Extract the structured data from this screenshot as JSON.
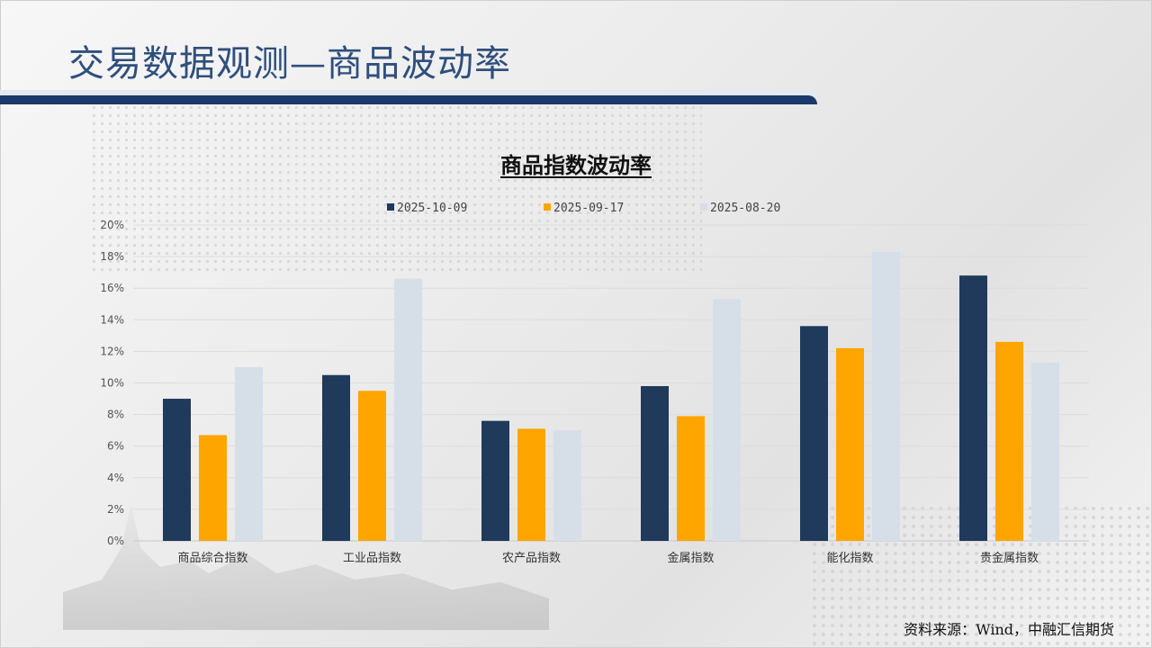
{
  "slide": {
    "title": "交易数据观测—商品波动率",
    "source": "资料来源：Wind，中融汇信期货"
  },
  "colors": {
    "title_text": "#2f4f7d",
    "title_bar": "#1b3a6c"
  },
  "chart_data": {
    "type": "bar",
    "title": "商品指数波动率",
    "xlabel": "",
    "ylabel": "",
    "ylim": [
      0,
      20
    ],
    "y_ticks": [
      "0%",
      "2%",
      "4%",
      "6%",
      "8%",
      "10%",
      "12%",
      "14%",
      "16%",
      "18%",
      "20%"
    ],
    "grid": true,
    "legend_position": "top",
    "categories": [
      "商品综合指数",
      "工业品指数",
      "农产品指数",
      "金属指数",
      "能化指数",
      "贵金属指数"
    ],
    "series": [
      {
        "name": "2025-10-09",
        "color": "#1f3a5a",
        "values": [
          9.0,
          10.5,
          7.6,
          9.8,
          13.6,
          16.8
        ]
      },
      {
        "name": "2025-09-17",
        "color": "#ffa500",
        "values": [
          6.7,
          9.5,
          7.1,
          7.9,
          12.2,
          12.6
        ]
      },
      {
        "name": "2025-08-20",
        "color": "#d6dfe8",
        "values": [
          11.0,
          16.6,
          7.0,
          15.3,
          18.3,
          11.3
        ]
      }
    ]
  }
}
